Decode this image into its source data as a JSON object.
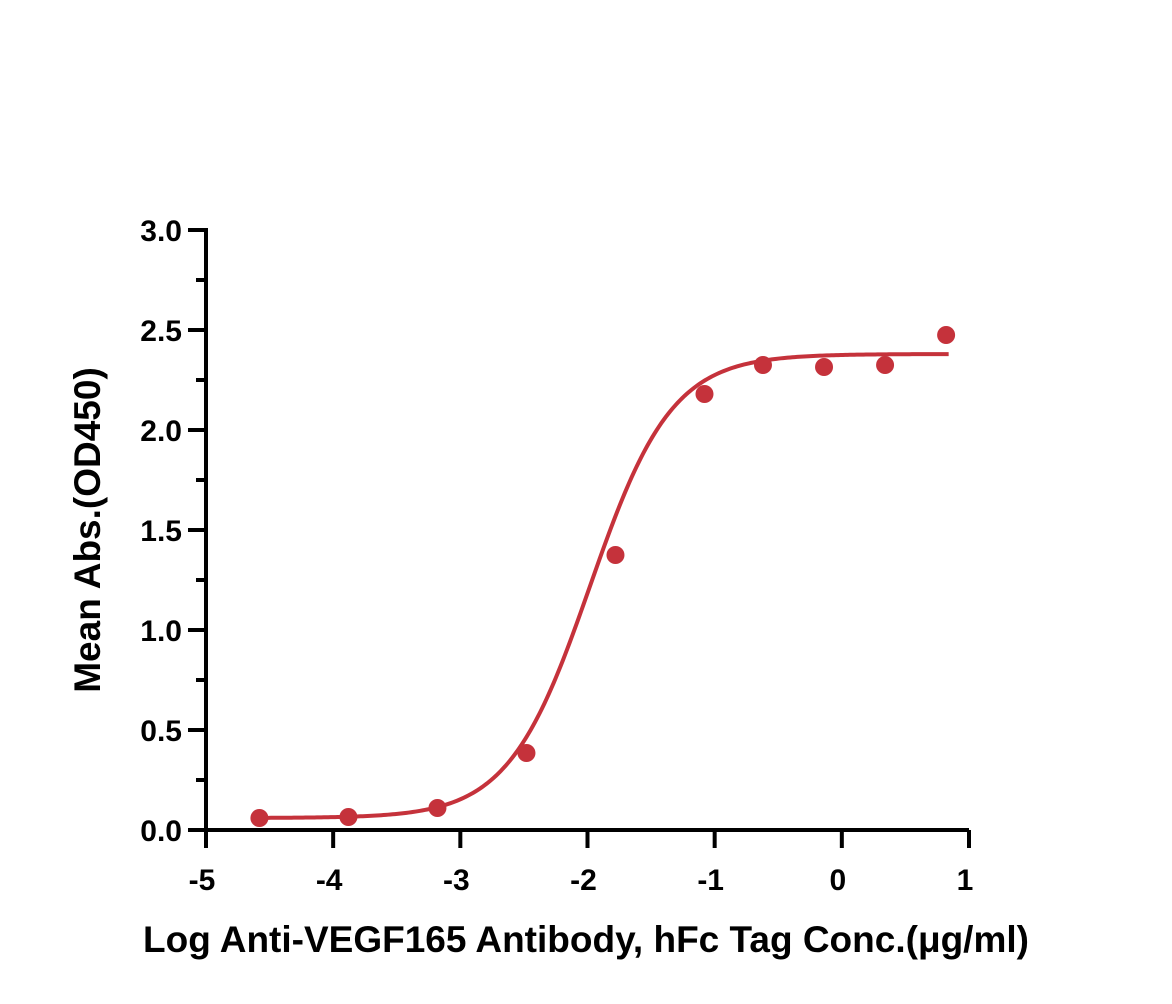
{
  "chart_data": {
    "type": "scatter",
    "title": "",
    "xlabel": "Log Anti-VEGF165 Antibody, hFc Tag Conc.(μg/ml)",
    "ylabel": "Mean Abs.(OD450)",
    "xlim": [
      -5,
      1
    ],
    "ylim": [
      0,
      3.0
    ],
    "x_ticks": [
      "-5",
      "-4",
      "-3",
      "-2",
      "-1",
      "0",
      "1"
    ],
    "y_ticks": [
      "0.0",
      "0.5",
      "1.0",
      "1.5",
      "2.0",
      "2.5",
      "3.0"
    ],
    "grid": false,
    "legend": "none",
    "series": [
      {
        "x": [
          -4.58,
          -3.88,
          -3.18,
          -2.48,
          -1.78,
          -1.08,
          -0.62,
          -0.14,
          0.34,
          0.82
        ],
        "y": [
          0.06,
          0.065,
          0.11,
          0.385,
          1.375,
          2.18,
          2.325,
          2.315,
          2.325,
          2.475
        ],
        "color": "#c5323b"
      }
    ],
    "fit_curve": {
      "model": "4PL",
      "bottom": 0.06,
      "top": 2.38,
      "log_ec50": -1.98,
      "hill_slope": 1.35,
      "color": "#c5323b"
    }
  }
}
